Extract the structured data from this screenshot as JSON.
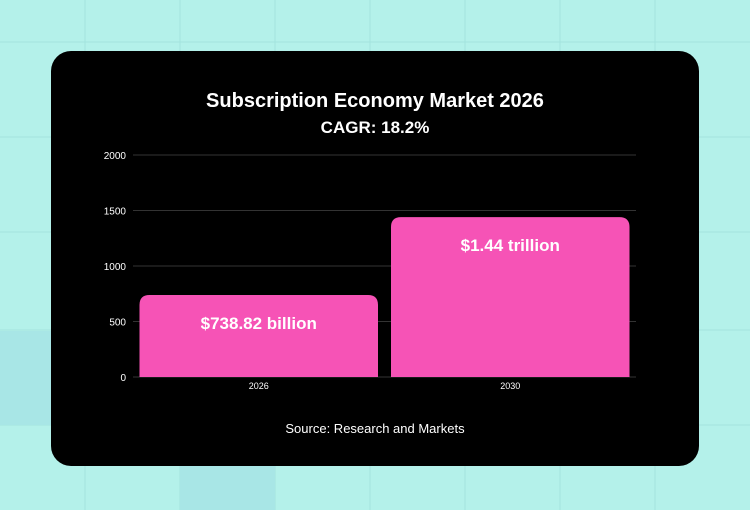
{
  "chart_data": {
    "type": "bar",
    "title": "Subscription Economy Market 2026",
    "subtitle": "CAGR: 18.2%",
    "categories": [
      "2026",
      "2030"
    ],
    "values": [
      738.82,
      1440
    ],
    "data_labels": [
      "$738.82 billion",
      "$1.44 trillion"
    ],
    "ylim": [
      0,
      2000
    ],
    "yticks": [
      "0",
      "500",
      "1000",
      "1500",
      "2000"
    ],
    "ytick_values": [
      0,
      500,
      1000,
      1500,
      2000
    ],
    "grid": true,
    "legend": "none",
    "source": "Source: Research and Markets"
  },
  "colors": {
    "bar": "#f653b6",
    "card": "#000000",
    "background": "#b4f1ea",
    "grid": "#333333"
  }
}
